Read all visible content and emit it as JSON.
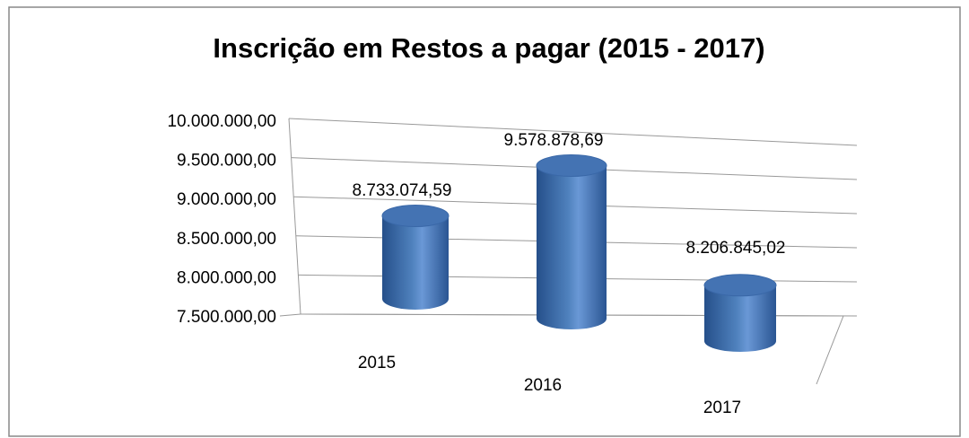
{
  "chart_data": {
    "type": "bar3d",
    "title": "Inscrição em Restos a pagar (2015 - 2017)",
    "categories": [
      "2015",
      "2016",
      "2017"
    ],
    "values": [
      8733074.59,
      9578878.69,
      8206845.02
    ],
    "value_labels": [
      "8.733.074,59",
      "9.578.878,69",
      "8.206.845,02"
    ],
    "color": "#4f81bd",
    "ylim": [
      7500000,
      10000000
    ],
    "yticks": [
      {
        "value": 7500000,
        "label": "7.500.000,00"
      },
      {
        "value": 8000000,
        "label": "8.000.000,00"
      },
      {
        "value": 8500000,
        "label": "8.500.000,00"
      },
      {
        "value": 9000000,
        "label": "9.000.000,00"
      },
      {
        "value": 9500000,
        "label": "9.500.000,00"
      },
      {
        "value": 10000000,
        "label": "10.000.000,00"
      }
    ],
    "grid": true
  }
}
